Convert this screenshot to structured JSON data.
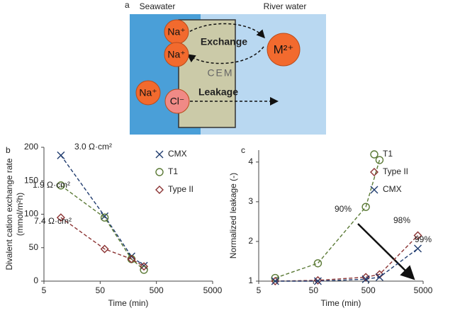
{
  "panel_a": {
    "label": "a",
    "left": "Seawater",
    "right": "River water",
    "membrane": "CEM",
    "exchange": "Exchange",
    "leakage": "Leakage",
    "ions": [
      "Na⁺",
      "Na⁺",
      "Na⁺",
      "Cl⁻",
      "M²⁺"
    ]
  },
  "chart_data": [
    {
      "type": "scatter",
      "panel": "b",
      "x_label": "Time (min)",
      "y_label": [
        "Divalent cation exchange rate",
        "(mmol/m²h)"
      ],
      "log_x": true,
      "xlim": [
        5,
        5000
      ],
      "xticks": [
        5,
        50,
        500,
        5000
      ],
      "ylim": [
        0,
        200
      ],
      "yticks": [
        0,
        50,
        100,
        150,
        200
      ],
      "legend": "upper right",
      "series": [
        {
          "name": "CMX",
          "color": "#1f3b6e",
          "marker": "x",
          "x": [
            10,
            60,
            180,
            300
          ],
          "values": [
            188,
            97,
            37,
            23
          ]
        },
        {
          "name": "T1",
          "color": "#5b7a36",
          "marker": "circle",
          "x": [
            10,
            60,
            180,
            300
          ],
          "values": [
            143,
            95,
            33,
            17
          ]
        },
        {
          "name": "Type II",
          "color": "#8b3333",
          "marker": "diamond",
          "x": [
            10,
            60,
            180,
            300
          ],
          "values": [
            95,
            48,
            33,
            22
          ]
        }
      ],
      "annotations": [
        "3.0 Ω·cm²",
        "1.9 Ω·cm²",
        "7.4 Ω·cm²"
      ]
    },
    {
      "type": "scatter",
      "panel": "c",
      "x_label": "Time (min)",
      "y_label": [
        "Normalized leakage (-)"
      ],
      "log_x": true,
      "xlim": [
        5,
        5000
      ],
      "xticks": [
        5,
        50,
        500,
        5000
      ],
      "ylim": [
        1,
        4.3
      ],
      "yticks": [
        1,
        2,
        3,
        4
      ],
      "legend": "upper right",
      "series": [
        {
          "name": "T1",
          "color": "#5b7a36",
          "marker": "circle",
          "x": [
            10,
            60,
            450,
            800
          ],
          "values": [
            1.08,
            1.45,
            2.87,
            4.05
          ]
        },
        {
          "name": "Type II",
          "color": "#8b3333",
          "marker": "diamond",
          "x": [
            10,
            60,
            450,
            800,
            4000
          ],
          "values": [
            1.0,
            1.02,
            1.1,
            1.17,
            2.15
          ]
        },
        {
          "name": "CMX",
          "color": "#1f3b6e",
          "marker": "x",
          "x": [
            10,
            60,
            450,
            800,
            4000
          ],
          "values": [
            1.0,
            1.0,
            1.05,
            1.1,
            1.82
          ]
        }
      ],
      "annotations": [
        "90%",
        "98%",
        "99%"
      ]
    }
  ]
}
